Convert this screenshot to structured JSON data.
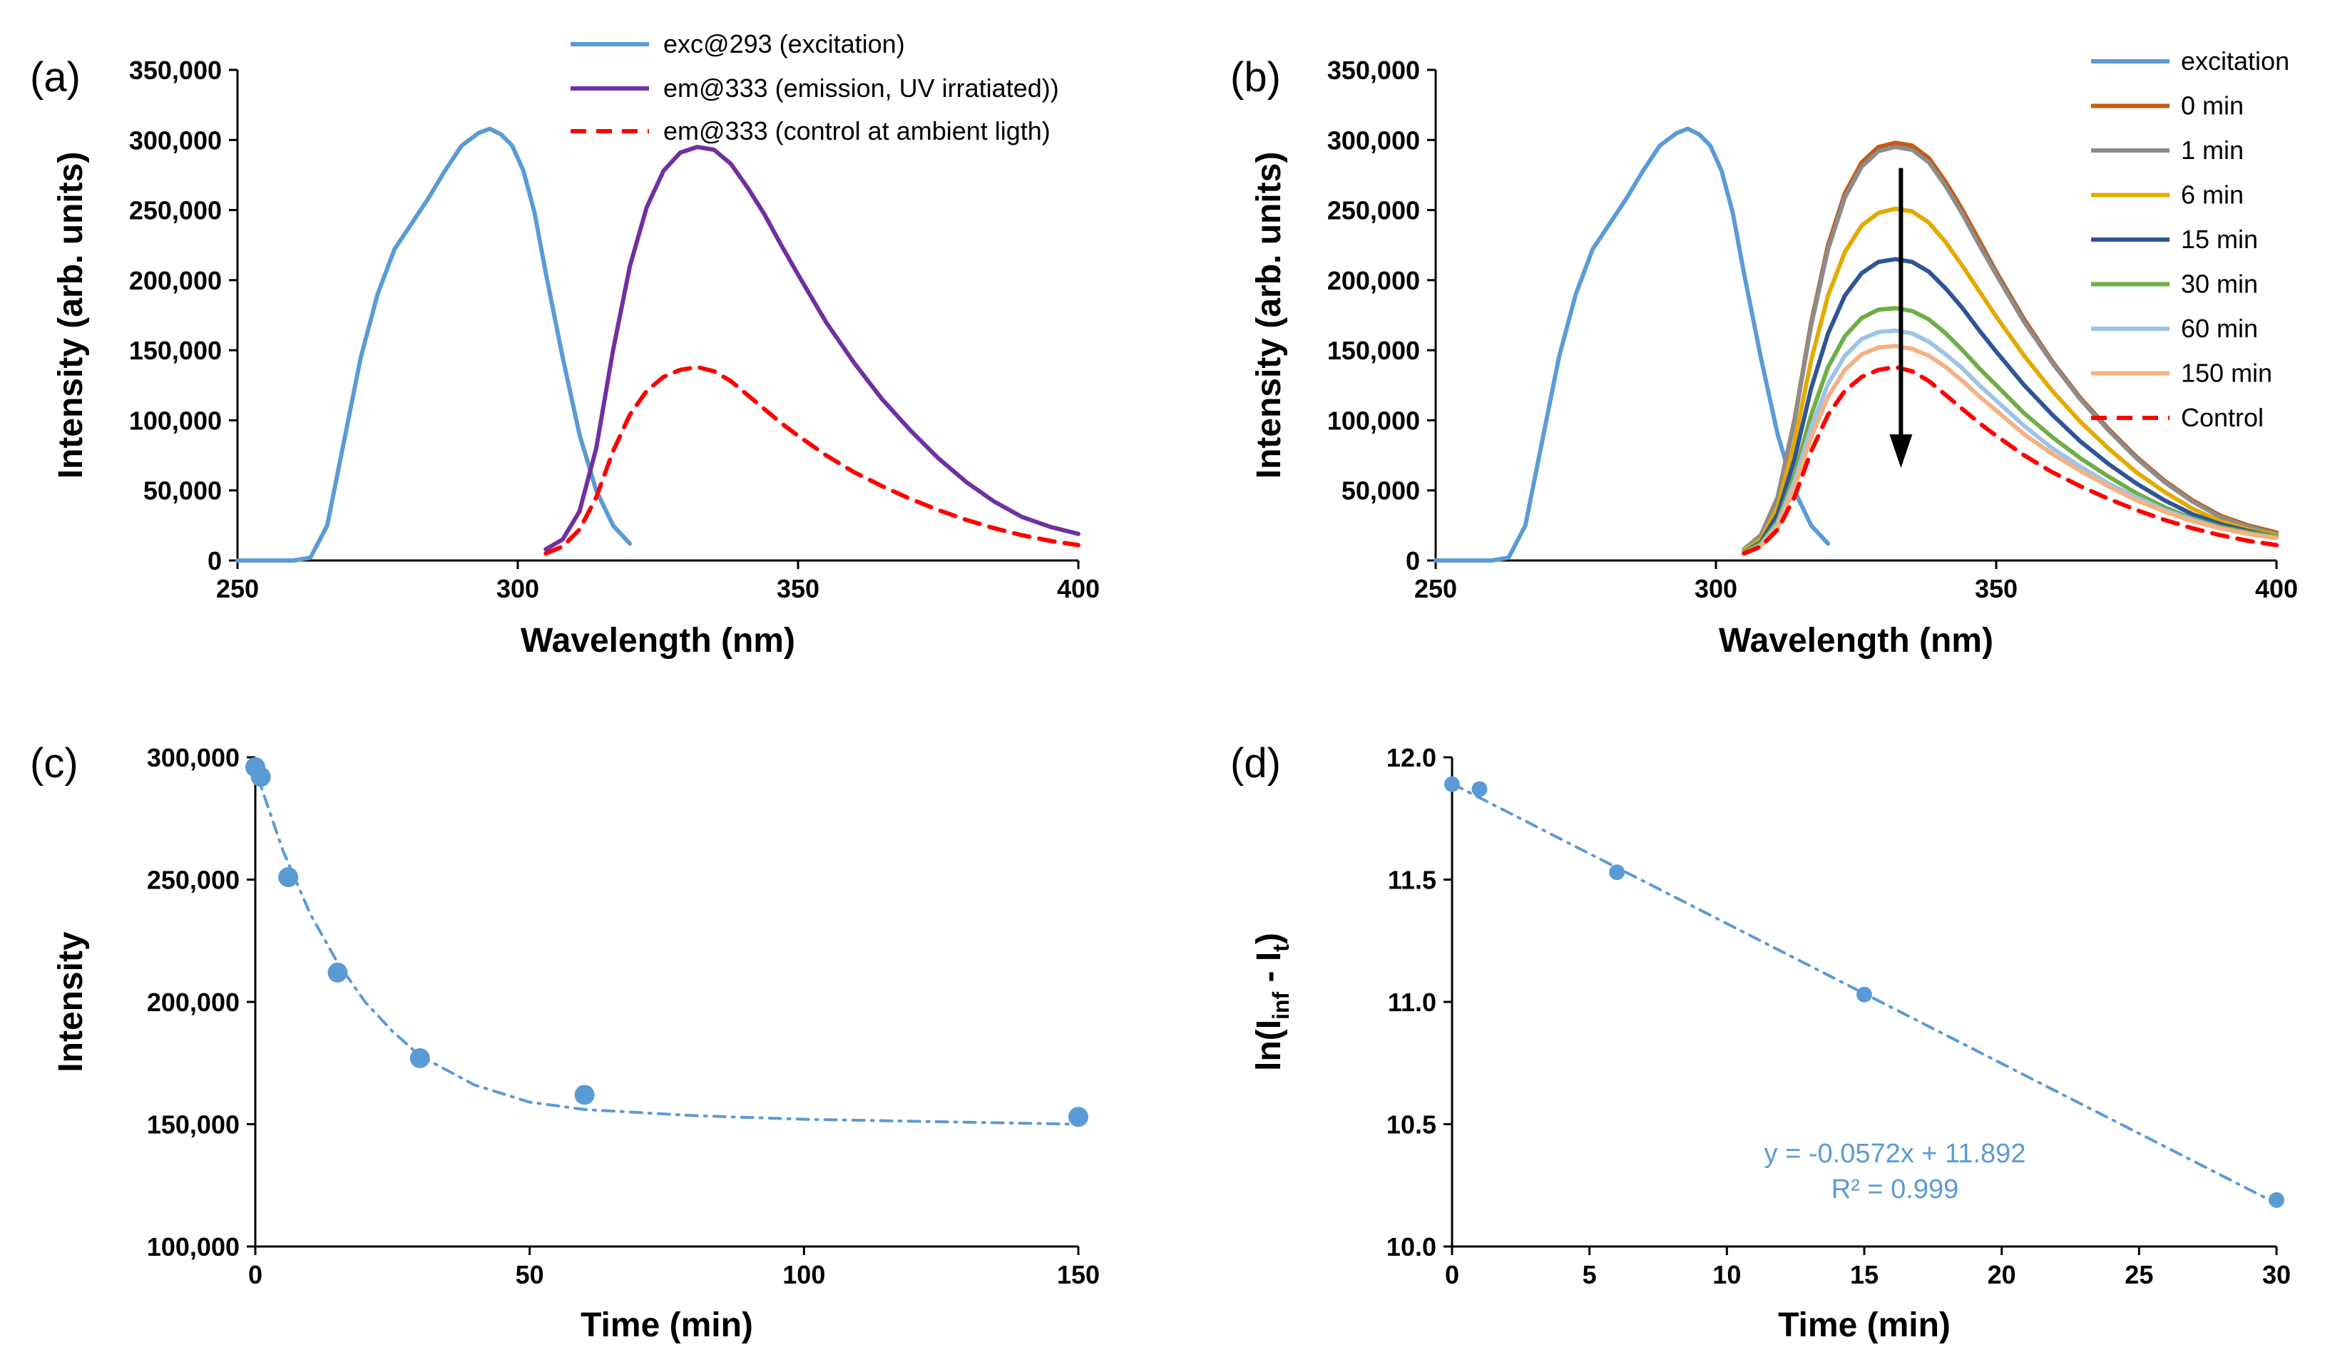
{
  "chart_data": [
    {
      "panel": "(a)",
      "type": "line",
      "xlabel": "Wavelength (nm)",
      "ylabel": "Intensity (arb. units)",
      "xlim": [
        250,
        400
      ],
      "ylim": [
        0,
        350000
      ],
      "xticks": [
        250,
        300,
        350,
        400
      ],
      "xtick_labels": [
        "250",
        "300",
        "350",
        "400"
      ],
      "yticks": [
        0,
        50000,
        100000,
        150000,
        200000,
        250000,
        300000,
        350000
      ],
      "ytick_labels": [
        "0",
        "50,000",
        "100,000",
        "150,000",
        "200,000",
        "250,000",
        "300,000",
        "350,000"
      ],
      "legend_position": "top-right",
      "series": [
        {
          "name": "exc@293 (excitation)",
          "color": "#5b9bd5",
          "dash": "solid",
          "x": [
            250,
            255,
            260,
            263,
            266,
            269,
            272,
            275,
            278,
            281,
            284,
            287,
            290,
            293,
            295,
            297,
            299,
            301,
            303,
            305,
            308,
            311,
            314,
            317,
            320
          ],
          "y": [
            0,
            0,
            0,
            2000,
            25000,
            85000,
            145000,
            190000,
            222000,
            240000,
            258000,
            278000,
            296000,
            305000,
            308000,
            304000,
            296000,
            278000,
            248000,
            205000,
            145000,
            90000,
            50000,
            25000,
            12000
          ]
        },
        {
          "name": "em@333 (emission, UV irratiated))",
          "color": "#7030a0",
          "dash": "solid",
          "x": [
            305,
            308,
            311,
            314,
            317,
            320,
            323,
            326,
            329,
            332,
            335,
            338,
            341,
            344,
            347,
            350,
            355,
            360,
            365,
            370,
            375,
            380,
            385,
            390,
            395,
            400
          ],
          "y": [
            8000,
            15000,
            35000,
            80000,
            150000,
            210000,
            252000,
            278000,
            291000,
            295000,
            293000,
            283000,
            266000,
            247000,
            225000,
            204000,
            170000,
            141000,
            115000,
            93000,
            73000,
            56000,
            42000,
            31000,
            24000,
            19000
          ]
        },
        {
          "name": "em@333 (control at ambient ligth)",
          "color": "#ff0000",
          "dash": "dashed",
          "x": [
            305,
            308,
            311,
            314,
            317,
            320,
            323,
            326,
            329,
            332,
            335,
            338,
            341,
            344,
            347,
            350,
            355,
            360,
            365,
            370,
            375,
            380,
            385,
            390,
            395,
            400
          ],
          "y": [
            5000,
            10000,
            22000,
            45000,
            78000,
            104000,
            121000,
            131000,
            136000,
            138000,
            135000,
            128000,
            118000,
            108000,
            98000,
            89000,
            75000,
            63000,
            53000,
            44000,
            36000,
            29000,
            23000,
            18000,
            14000,
            11000
          ]
        }
      ]
    },
    {
      "panel": "(b)",
      "type": "line",
      "xlabel": "Wavelength (nm)",
      "ylabel": "Intensity (arb. units)",
      "xlim": [
        250,
        400
      ],
      "ylim": [
        0,
        350000
      ],
      "xticks": [
        250,
        300,
        350,
        400
      ],
      "xtick_labels": [
        "250",
        "300",
        "350",
        "400"
      ],
      "yticks": [
        0,
        50000,
        100000,
        150000,
        200000,
        250000,
        300000,
        350000
      ],
      "ytick_labels": [
        "0",
        "50,000",
        "100,000",
        "150,000",
        "200,000",
        "250,000",
        "300,000",
        "350,000"
      ],
      "legend_position": "right",
      "annotation": "downward arrow at ~333 nm from ~280,000 to ~70,000",
      "emission_x": [
        305,
        308,
        311,
        314,
        317,
        320,
        323,
        326,
        329,
        332,
        335,
        338,
        341,
        344,
        347,
        350,
        355,
        360,
        365,
        370,
        375,
        380,
        385,
        390,
        395,
        400
      ],
      "series": [
        {
          "name": "excitation",
          "color": "#5b9bd5",
          "dash": "solid",
          "x": [
            250,
            255,
            260,
            263,
            266,
            269,
            272,
            275,
            278,
            281,
            284,
            287,
            290,
            293,
            295,
            297,
            299,
            301,
            303,
            305,
            308,
            311,
            314,
            317,
            320
          ],
          "y": [
            0,
            0,
            0,
            2000,
            25000,
            85000,
            145000,
            190000,
            222000,
            240000,
            258000,
            278000,
            296000,
            305000,
            308000,
            304000,
            296000,
            278000,
            248000,
            205000,
            145000,
            90000,
            50000,
            25000,
            12000
          ]
        },
        {
          "name": "0 min",
          "color": "#c55a11",
          "dash": "solid",
          "y": [
            8000,
            18000,
            45000,
            100000,
            170000,
            225000,
            262000,
            284000,
            295000,
            298000,
            296000,
            287000,
            270000,
            250000,
            228000,
            206000,
            172000,
            142000,
            116000,
            94000,
            74000,
            57000,
            43000,
            32000,
            25000,
            20000
          ]
        },
        {
          "name": "1 min",
          "color": "#8c8c8c",
          "dash": "solid",
          "y": [
            8000,
            18000,
            45000,
            99000,
            168000,
            222000,
            259000,
            281000,
            292000,
            295000,
            293000,
            284000,
            267000,
            247000,
            225000,
            204000,
            170000,
            141000,
            115000,
            93000,
            73000,
            56000,
            42000,
            31000,
            24000,
            19000
          ]
        },
        {
          "name": "6 min",
          "color": "#e3aa00",
          "dash": "solid",
          "y": [
            7000,
            15000,
            38000,
            84000,
            143000,
            189000,
            220000,
            239000,
            248000,
            251000,
            249000,
            241000,
            227000,
            210000,
            192000,
            174000,
            146000,
            121000,
            99000,
            80000,
            63000,
            49000,
            37000,
            28000,
            22000,
            18000
          ]
        },
        {
          "name": "15 min",
          "color": "#2f5597",
          "dash": "solid",
          "y": [
            6000,
            13000,
            33000,
            72000,
            123000,
            162000,
            189000,
            205000,
            213000,
            215000,
            213000,
            206000,
            194000,
            180000,
            164000,
            149000,
            125000,
            104000,
            85000,
            69000,
            55000,
            43000,
            33000,
            26000,
            21000,
            17000
          ]
        },
        {
          "name": "30 min",
          "color": "#70ad47",
          "dash": "solid",
          "y": [
            6000,
            12000,
            28000,
            61000,
            104000,
            138000,
            160000,
            173000,
            179000,
            180000,
            178000,
            172000,
            162000,
            150000,
            137000,
            125000,
            105000,
            88000,
            73000,
            60000,
            48000,
            38000,
            30000,
            24000,
            20000,
            17000
          ]
        },
        {
          "name": "60 min",
          "color": "#9dc3e6",
          "dash": "solid",
          "y": [
            5000,
            11000,
            26000,
            56000,
            95000,
            126000,
            146000,
            158000,
            163000,
            164000,
            162000,
            156000,
            147000,
            137000,
            125000,
            114000,
            96000,
            80000,
            67000,
            55000,
            45000,
            36000,
            29000,
            23000,
            19000,
            16000
          ]
        },
        {
          "name": "150 min",
          "color": "#f4b183",
          "dash": "solid",
          "y": [
            5000,
            10000,
            24000,
            52000,
            88000,
            117000,
            136000,
            147000,
            152000,
            153000,
            151000,
            146000,
            138000,
            128000,
            117000,
            107000,
            90000,
            76000,
            64000,
            53000,
            43000,
            35000,
            28000,
            23000,
            19000,
            16000
          ]
        },
        {
          "name": "Control",
          "color": "#ff0000",
          "dash": "dashed",
          "y": [
            5000,
            10000,
            22000,
            45000,
            78000,
            104000,
            121000,
            131000,
            136000,
            138000,
            135000,
            128000,
            118000,
            108000,
            98000,
            89000,
            75000,
            63000,
            53000,
            44000,
            36000,
            29000,
            23000,
            18000,
            14000,
            11000
          ]
        }
      ]
    },
    {
      "panel": "(c)",
      "type": "scatter",
      "xlabel": "Time (min)",
      "ylabel": "Intensity",
      "xlim": [
        0,
        150
      ],
      "ylim": [
        100000,
        300000
      ],
      "xticks": [
        0,
        50,
        100,
        150
      ],
      "xtick_labels": [
        "0",
        "50",
        "100",
        "150"
      ],
      "yticks": [
        100000,
        150000,
        200000,
        250000,
        300000
      ],
      "ytick_labels": [
        "100,000",
        "150,000",
        "200,000",
        "250,000",
        "300,000"
      ],
      "color": "#5b9bd5",
      "points": {
        "x": [
          0,
          1,
          6,
          15,
          30,
          60,
          150
        ],
        "y": [
          296000,
          292000,
          251000,
          212000,
          177000,
          162000,
          153000
        ]
      },
      "fit": {
        "style": "dash-dot",
        "description": "exponential decay fit",
        "x": [
          0,
          5,
          10,
          15,
          20,
          25,
          30,
          40,
          50,
          60,
          80,
          100,
          125,
          150
        ],
        "y": [
          295000,
          262000,
          236000,
          216000,
          200000,
          188000,
          178000,
          166000,
          159000,
          156000,
          153500,
          152000,
          151000,
          150000
        ]
      }
    },
    {
      "panel": "(d)",
      "type": "scatter",
      "xlabel": "Time (min)",
      "ylabel": "ln(Iinf - It)",
      "ylabel_parts": {
        "prefix": "ln(I",
        "sub1": "inf",
        "mid": " - I",
        "sub2": "t",
        "suffix": ")"
      },
      "xlim": [
        0,
        30
      ],
      "ylim": [
        10.0,
        12.0
      ],
      "xticks": [
        0,
        5,
        10,
        15,
        20,
        25,
        30
      ],
      "xtick_labels": [
        "0",
        "5",
        "10",
        "15",
        "20",
        "25",
        "30"
      ],
      "yticks": [
        10.0,
        10.5,
        11.0,
        11.5,
        12.0
      ],
      "ytick_labels": [
        "10.0",
        "10.5",
        "11.0",
        "11.5",
        "12.0"
      ],
      "color": "#5b9bd5",
      "points": {
        "x": [
          0,
          1,
          6,
          15,
          30
        ],
        "y": [
          11.89,
          11.87,
          11.53,
          11.03,
          10.19
        ]
      },
      "fit": {
        "style": "dash-dot",
        "slope": -0.0572,
        "intercept": 11.892
      },
      "equation": "y = -0.0572x + 11.892",
      "r_squared": "R² = 0.999"
    }
  ]
}
